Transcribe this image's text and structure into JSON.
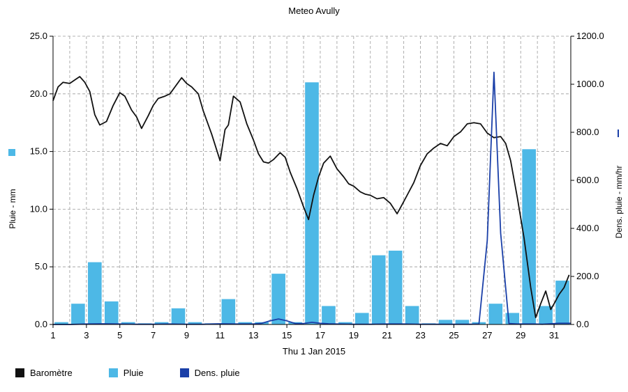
{
  "chart_data": {
    "type": "bar",
    "title": "Meteo  Avully",
    "xlabel": "Thu 1 Jan 2015",
    "ylabel_left": "Pluie - mm",
    "ylabel_right": "Dens. pluie - mm/hr",
    "x_ticks": [
      "1",
      "3",
      "5",
      "7",
      "9",
      "11",
      "13",
      "15",
      "17",
      "19",
      "21",
      "23",
      "25",
      "27",
      "29",
      "31"
    ],
    "xlim": [
      1,
      32
    ],
    "ylim_left": [
      0,
      25
    ],
    "ylim_right": [
      0,
      1200
    ],
    "y_ticks_left": [
      "0.0",
      "5.0",
      "10.0",
      "15.0",
      "20.0",
      "25.0"
    ],
    "y_ticks_right": [
      "0.0",
      "200.0",
      "400.0",
      "600.0",
      "800.0",
      "1000.0",
      "1200.0"
    ],
    "grid": true,
    "legend_position": "bottom",
    "colors": {
      "barometre": "#111111",
      "pluie": "#4db8e6",
      "dens": "#1a3fa8"
    },
    "series": [
      {
        "name": "Pluie",
        "axis": "left",
        "type": "bar",
        "days": [
          1,
          2,
          3,
          4,
          5,
          6,
          7,
          8,
          9,
          10,
          11,
          12,
          13,
          14,
          15,
          16,
          17,
          18,
          19,
          20,
          21,
          22,
          23,
          24,
          25,
          26,
          27,
          28,
          29,
          30,
          31
        ],
        "values": [
          0.2,
          1.8,
          5.4,
          2.0,
          0.2,
          0.1,
          0.2,
          1.4,
          0.2,
          0.1,
          2.2,
          0.2,
          0.2,
          4.4,
          0.2,
          21.0,
          1.6,
          0.2,
          1.0,
          6.0,
          6.4,
          1.6,
          0.1,
          0.4,
          0.4,
          0.2,
          1.8,
          1.0,
          15.2,
          1.6,
          3.8
        ]
      },
      {
        "name": "Baromètre",
        "axis": "left",
        "type": "line",
        "x": [
          1,
          1.3,
          1.6,
          2.0,
          2.3,
          2.6,
          2.9,
          3.2,
          3.5,
          3.8,
          4.2,
          4.6,
          5.0,
          5.3,
          5.7,
          6.0,
          6.3,
          6.7,
          7.0,
          7.3,
          7.7,
          8.0,
          8.3,
          8.7,
          9.0,
          9.3,
          9.7,
          10.0,
          10.5,
          11.0,
          11.3,
          11.5,
          11.8,
          12.2,
          12.6,
          13.0,
          13.3,
          13.6,
          13.9,
          14.2,
          14.6,
          14.9,
          15.2,
          15.6,
          16.0,
          16.3,
          16.6,
          16.9,
          17.2,
          17.6,
          18.0,
          18.4,
          18.7,
          19.0,
          19.4,
          19.7,
          20.0,
          20.4,
          20.8,
          21.2,
          21.6,
          21.9,
          22.2,
          22.6,
          23.0,
          23.4,
          23.8,
          24.2,
          24.6,
          25.0,
          25.4,
          25.8,
          26.2,
          26.6,
          27.0,
          27.4,
          27.8,
          28.1,
          28.4,
          28.8,
          29.2,
          29.6,
          29.9,
          30.2,
          30.5,
          30.8,
          31.0,
          31.3,
          31.6,
          31.9
        ],
        "values": [
          19.4,
          20.6,
          21.0,
          20.9,
          21.2,
          21.5,
          21.0,
          20.2,
          18.2,
          17.3,
          17.6,
          19.0,
          20.1,
          19.8,
          18.6,
          18.0,
          17.0,
          18.1,
          19.0,
          19.6,
          19.8,
          20.0,
          20.6,
          21.4,
          20.9,
          20.6,
          20.0,
          18.5,
          16.5,
          14.2,
          16.9,
          17.3,
          19.8,
          19.3,
          17.4,
          16.0,
          14.8,
          14.1,
          14.0,
          14.3,
          14.9,
          14.5,
          13.2,
          11.8,
          10.2,
          9.1,
          11.2,
          12.8,
          14.0,
          14.6,
          13.5,
          12.8,
          12.2,
          12.0,
          11.5,
          11.3,
          11.2,
          10.9,
          11.0,
          10.5,
          9.6,
          10.4,
          11.2,
          12.3,
          13.8,
          14.8,
          15.3,
          15.7,
          15.5,
          16.3,
          16.7,
          17.4,
          17.5,
          17.4,
          16.6,
          16.2,
          16.3,
          15.7,
          14.2,
          11.0,
          7.5,
          3.2,
          0.6,
          1.8,
          2.9,
          1.3,
          1.8,
          2.6,
          3.2,
          4.3
        ]
      },
      {
        "name": "Dens. pluie",
        "axis": "right",
        "type": "line",
        "x": [
          1,
          2,
          3,
          4,
          5,
          6,
          7,
          8,
          9,
          10,
          11,
          12,
          13,
          13.5,
          14,
          14.5,
          15,
          15.5,
          16,
          16.5,
          17,
          17.5,
          18,
          19,
          20,
          21,
          22,
          23,
          24,
          25,
          26,
          26.5,
          27.0,
          27.4,
          27.8,
          28.3,
          28.8,
          29.3,
          29.8,
          30.3,
          31.0,
          31.3,
          32
        ],
        "values": [
          0,
          0,
          2,
          3,
          2,
          1,
          1,
          2,
          1,
          1,
          3,
          2,
          2,
          5,
          15,
          23,
          15,
          4,
          4,
          9,
          5,
          3,
          2,
          1,
          1,
          2,
          2,
          1,
          1,
          1,
          1,
          2,
          350,
          1050,
          380,
          4,
          2,
          2,
          2,
          1,
          4,
          5,
          5
        ]
      }
    ]
  },
  "legend": {
    "barometre": "Baromètre",
    "pluie": "Pluie",
    "dens": "Dens. pluie"
  }
}
